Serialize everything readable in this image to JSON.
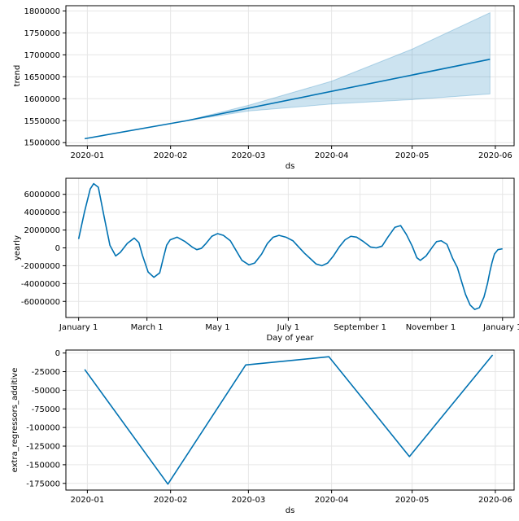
{
  "chart_data": [
    {
      "type": "line",
      "panel": "trend",
      "xlabel": "ds",
      "ylabel": "trend",
      "x_axis": "date",
      "xlim": [
        "2019-12-24",
        "2020-06-08"
      ],
      "ylim": [
        1493000,
        1812000
      ],
      "x_ticks": [
        "2020-01-01",
        "2020-02-01",
        "2020-03-01",
        "2020-04-01",
        "2020-05-01",
        "2020-06-01"
      ],
      "x_tick_labels": [
        "2020-01",
        "2020-02",
        "2020-03",
        "2020-04",
        "2020-05",
        "2020-06"
      ],
      "y_ticks": [
        1500000,
        1550000,
        1600000,
        1650000,
        1700000,
        1750000,
        1800000
      ],
      "y_tick_labels": [
        "1500000",
        "1550000",
        "1600000",
        "1650000",
        "1700000",
        "1750000",
        "1800000"
      ],
      "grid": true,
      "line_color": "#0072b2",
      "band_color": "#0072b2",
      "series": [
        {
          "x": [
            "2019-12-31",
            "2020-02-07",
            "2020-05-30"
          ],
          "values": [
            1509000,
            1550000,
            1690000
          ]
        }
      ],
      "band": {
        "x": [
          "2020-02-07",
          "2020-03-01",
          "2020-04-01",
          "2020-05-01",
          "2020-05-30"
        ],
        "lower": [
          1550000,
          1572000,
          1588000,
          1598000,
          1611000
        ],
        "upper": [
          1550000,
          1585000,
          1640000,
          1713000,
          1796000
        ]
      }
    },
    {
      "type": "line",
      "panel": "yearly",
      "xlabel": "Day of year",
      "ylabel": "yearly",
      "xlim": [
        -11,
        376
      ],
      "ylim": [
        -7800000,
        7800000
      ],
      "x_ticks": [
        0,
        59,
        120,
        181,
        243,
        304,
        366
      ],
      "x_tick_labels": [
        "January 1",
        "March 1",
        "May 1",
        "July 1",
        "September 1",
        "November 1",
        "January 1"
      ],
      "y_ticks": [
        -6000000,
        -4000000,
        -2000000,
        0,
        2000000,
        4000000,
        6000000
      ],
      "y_tick_labels": [
        "-6000000",
        "-4000000",
        "-2000000",
        "0",
        "2000000",
        "4000000",
        "6000000"
      ],
      "grid": true,
      "line_color": "#0072b2",
      "series": [
        {
          "x": [
            0,
            5,
            10,
            13,
            17,
            22,
            27,
            32,
            36,
            42,
            48,
            52,
            55,
            60,
            65,
            70,
            73,
            76,
            79,
            85,
            92,
            98,
            102,
            106,
            110,
            115,
            120,
            125,
            131,
            136,
            141,
            147,
            152,
            158,
            163,
            168,
            173,
            179,
            185,
            190,
            195,
            200,
            205,
            210,
            215,
            220,
            225,
            230,
            235,
            240,
            246,
            252,
            257,
            262,
            267,
            273,
            278,
            283,
            288,
            292,
            295,
            300,
            306,
            309,
            313,
            318,
            323,
            327,
            330,
            334,
            338,
            342,
            346,
            350,
            353,
            355,
            357,
            359,
            362,
            366
          ],
          "values": [
            1000000,
            4000000,
            6600000,
            7200000,
            6800000,
            3500000,
            300000,
            -900000,
            -500000,
            500000,
            1100000,
            600000,
            -800000,
            -2700000,
            -3300000,
            -2800000,
            -1200000,
            300000,
            900000,
            1200000,
            700000,
            100000,
            -200000,
            -50000,
            500000,
            1300000,
            1600000,
            1400000,
            800000,
            -300000,
            -1400000,
            -1900000,
            -1700000,
            -700000,
            500000,
            1200000,
            1400000,
            1200000,
            800000,
            100000,
            -600000,
            -1200000,
            -1800000,
            -2000000,
            -1700000,
            -900000,
            100000,
            900000,
            1300000,
            1200000,
            700000,
            100000,
            0,
            200000,
            1200000,
            2300000,
            2500000,
            1500000,
            200000,
            -1100000,
            -1400000,
            -900000,
            200000,
            700000,
            800000,
            400000,
            -1200000,
            -2200000,
            -3500000,
            -5200000,
            -6400000,
            -6900000,
            -6700000,
            -5500000,
            -4000000,
            -2700000,
            -1600000,
            -700000,
            -200000,
            -100000
          ]
        }
      ]
    },
    {
      "type": "line",
      "panel": "extra_regressors_additive",
      "xlabel": "ds",
      "ylabel": "extra_regressors_additive",
      "x_axis": "date",
      "xlim": [
        "2019-12-24",
        "2020-06-08"
      ],
      "ylim": [
        -184000,
        4000
      ],
      "x_ticks": [
        "2020-01-01",
        "2020-02-01",
        "2020-03-01",
        "2020-04-01",
        "2020-05-01",
        "2020-06-01"
      ],
      "x_tick_labels": [
        "2020-01",
        "2020-02",
        "2020-03",
        "2020-04",
        "2020-05",
        "2020-06"
      ],
      "y_ticks": [
        0,
        -25000,
        -50000,
        -75000,
        -100000,
        -125000,
        -150000,
        -175000
      ],
      "y_tick_labels": [
        "0",
        "-25000",
        "-50000",
        "-75000",
        "-100000",
        "-125000",
        "-150000",
        "-175000"
      ],
      "grid": true,
      "line_color": "#0072b2",
      "series": [
        {
          "x": [
            "2019-12-31",
            "2020-01-31",
            "2020-02-29",
            "2020-03-31",
            "2020-04-30",
            "2020-05-31"
          ],
          "values": [
            -22000,
            -176000,
            -16000,
            -5000,
            -139000,
            -2500
          ]
        }
      ]
    }
  ]
}
